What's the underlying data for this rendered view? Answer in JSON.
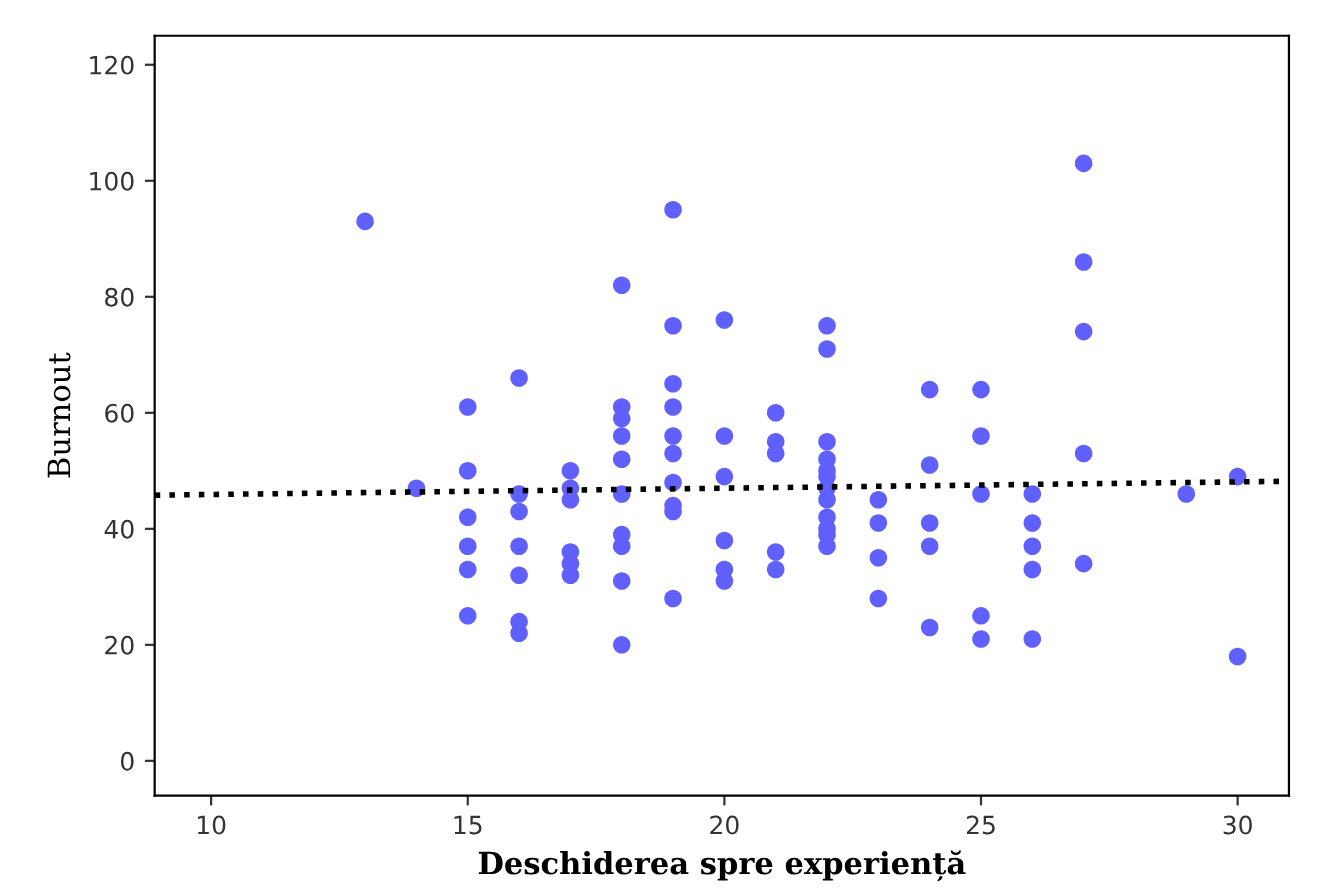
{
  "chart_data": {
    "type": "scatter",
    "xlabel": "Deschiderea spre experiență",
    "ylabel": "Burnout",
    "xlim": [
      8.9,
      31
    ],
    "ylim": [
      -6,
      125
    ],
    "xticks": [
      10,
      15,
      20,
      25,
      30
    ],
    "yticks": [
      0,
      20,
      40,
      60,
      80,
      100,
      120
    ],
    "grid": false,
    "legend": false,
    "marker": "circle",
    "series": [
      {
        "color": "#6060ff",
        "x": [
          13,
          14,
          15,
          15,
          15,
          15,
          15,
          15,
          16,
          16,
          16,
          16,
          16,
          16,
          16,
          17,
          17,
          17,
          17,
          17,
          17,
          18,
          18,
          18,
          18,
          18,
          18,
          18,
          18,
          18,
          18,
          19,
          19,
          19,
          19,
          19,
          19,
          19,
          19,
          19,
          19,
          20,
          20,
          20,
          20,
          20,
          20,
          21,
          21,
          21,
          21,
          21,
          22,
          22,
          22,
          22,
          22,
          22,
          22,
          22,
          22,
          22,
          22,
          22,
          23,
          23,
          23,
          23,
          24,
          24,
          24,
          24,
          24,
          25,
          25,
          25,
          25,
          25,
          26,
          26,
          26,
          26,
          26,
          27,
          27,
          27,
          27,
          27,
          29,
          30,
          30
        ],
        "values": [
          93,
          47,
          61,
          50,
          42,
          37,
          33,
          25,
          66,
          46,
          43,
          37,
          32,
          24,
          22,
          50,
          47,
          45,
          36,
          34,
          32,
          82,
          61,
          59,
          56,
          52,
          46,
          39,
          37,
          31,
          20,
          95,
          75,
          65,
          61,
          56,
          53,
          48,
          44,
          43,
          28,
          76,
          56,
          49,
          38,
          33,
          31,
          60,
          55,
          53,
          36,
          33,
          75,
          71,
          55,
          52,
          50,
          49,
          47,
          45,
          42,
          40,
          39,
          37,
          45,
          41,
          35,
          28,
          64,
          51,
          41,
          37,
          23,
          64,
          56,
          46,
          25,
          21,
          46,
          41,
          37,
          33,
          21,
          103,
          86,
          74,
          53,
          34,
          46,
          49,
          18
        ]
      },
      {
        "type": "line",
        "color": "#000000",
        "line_style": "dotted",
        "marker": "none",
        "x": [
          8.9,
          31
        ],
        "values": [
          45.8,
          48.2
        ]
      }
    ]
  }
}
